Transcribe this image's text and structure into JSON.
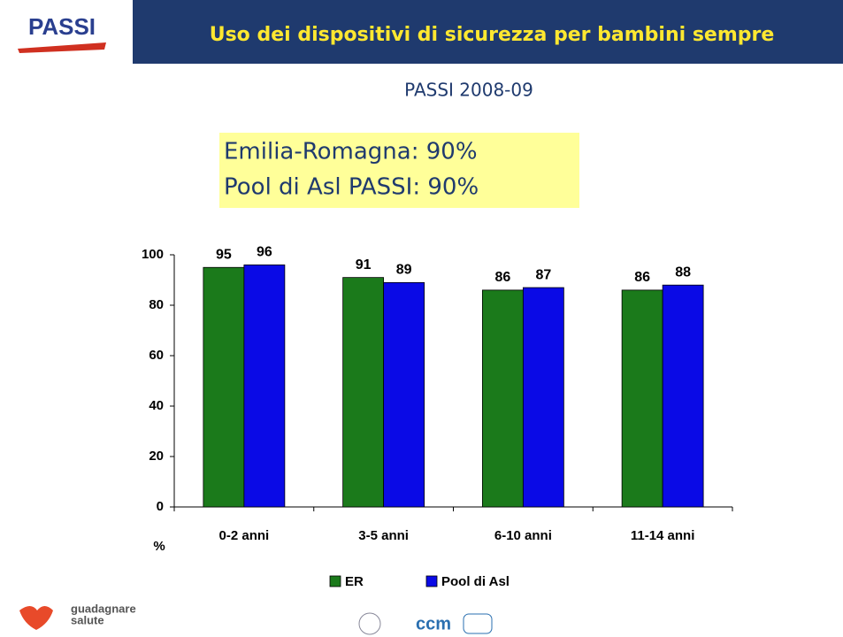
{
  "header": {
    "logo": "PASSI",
    "title": "Uso dei dispositivi di sicurezza per bambini sempre",
    "subtitle": "PASSI 2008-09"
  },
  "chart_data": {
    "type": "bar",
    "annotations": [
      "Emilia-Romagna: 90%",
      "Pool di Asl PASSI:  90%"
    ],
    "ylabel": "%",
    "categories": [
      "0-2 anni",
      "3-5 anni",
      "6-10 anni",
      "11-14 anni"
    ],
    "series": [
      {
        "name": "ER",
        "color": "#1b7a1b",
        "values": [
          95,
          91,
          86,
          86
        ]
      },
      {
        "name": "Pool di Asl",
        "color": "#0a0ae6",
        "values": [
          96,
          89,
          87,
          88
        ]
      }
    ],
    "ylim": [
      0,
      100
    ],
    "yticks": [
      0,
      20,
      40,
      60,
      80,
      100
    ],
    "grid": false
  },
  "footer": {
    "brand": [
      "guadagnare",
      "salute"
    ],
    "logo": "ccm"
  }
}
